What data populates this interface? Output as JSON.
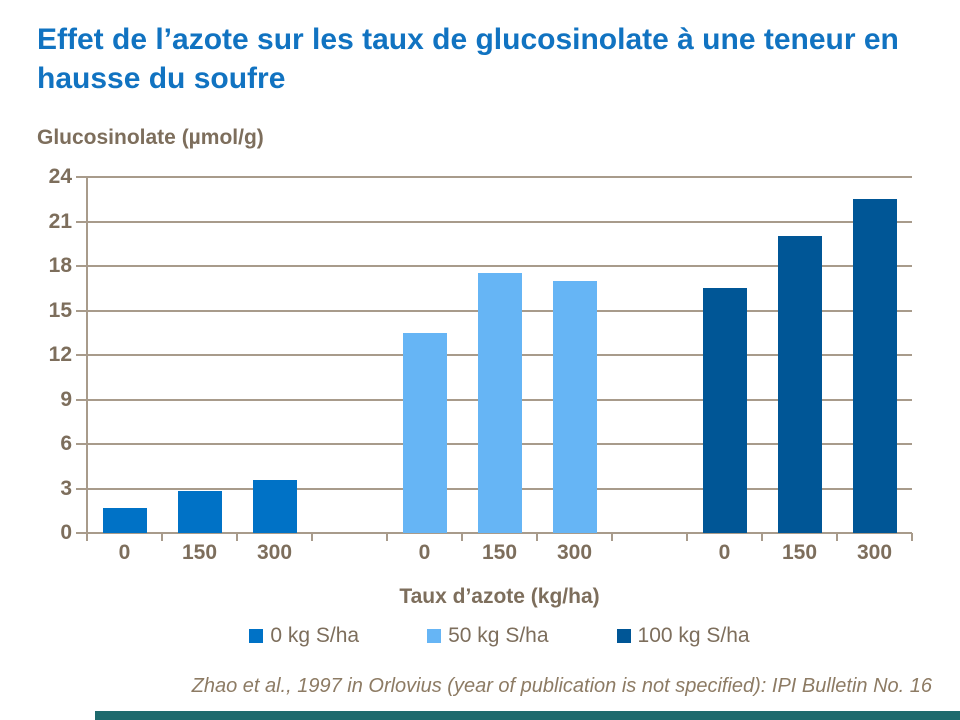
{
  "title": "Effet de l’azote sur les taux de glucosinolate à une teneur en hausse du soufre",
  "citation": "Zhao et al., 1997 in Orlovius (year of publication is not specified): IPI Bulletin No. 16",
  "colors": {
    "title_text": "#1173C1",
    "axis_text": "#7D6E5C",
    "gridline": "#A89B8B",
    "citation_text": "#8D7B64",
    "footer_bar": "#1E6A6D"
  },
  "chart_data": {
    "type": "bar",
    "title": "Effet de l’azote sur les taux de glucosinolate à une teneur en hausse du soufre",
    "ylabel": "Glucosinolate (µmol/g)",
    "xlabel": "Taux d’azote (kg/ha)",
    "ylim": [
      0,
      24
    ],
    "yticks": [
      0,
      3,
      6,
      9,
      12,
      15,
      18,
      21,
      24
    ],
    "grid": true,
    "legend_position": "bottom",
    "categories": [
      "0",
      "150",
      "300"
    ],
    "series": [
      {
        "name": "0 kg S/ha",
        "color": "#0072C6",
        "values": [
          1.7,
          2.8,
          3.6
        ]
      },
      {
        "name": "50 kg S/ha",
        "color": "#66B5F5",
        "values": [
          13.5,
          17.5,
          17.0
        ]
      },
      {
        "name": "100 kg S/ha",
        "color": "#005696",
        "values": [
          16.5,
          20.0,
          22.5
        ]
      }
    ]
  }
}
